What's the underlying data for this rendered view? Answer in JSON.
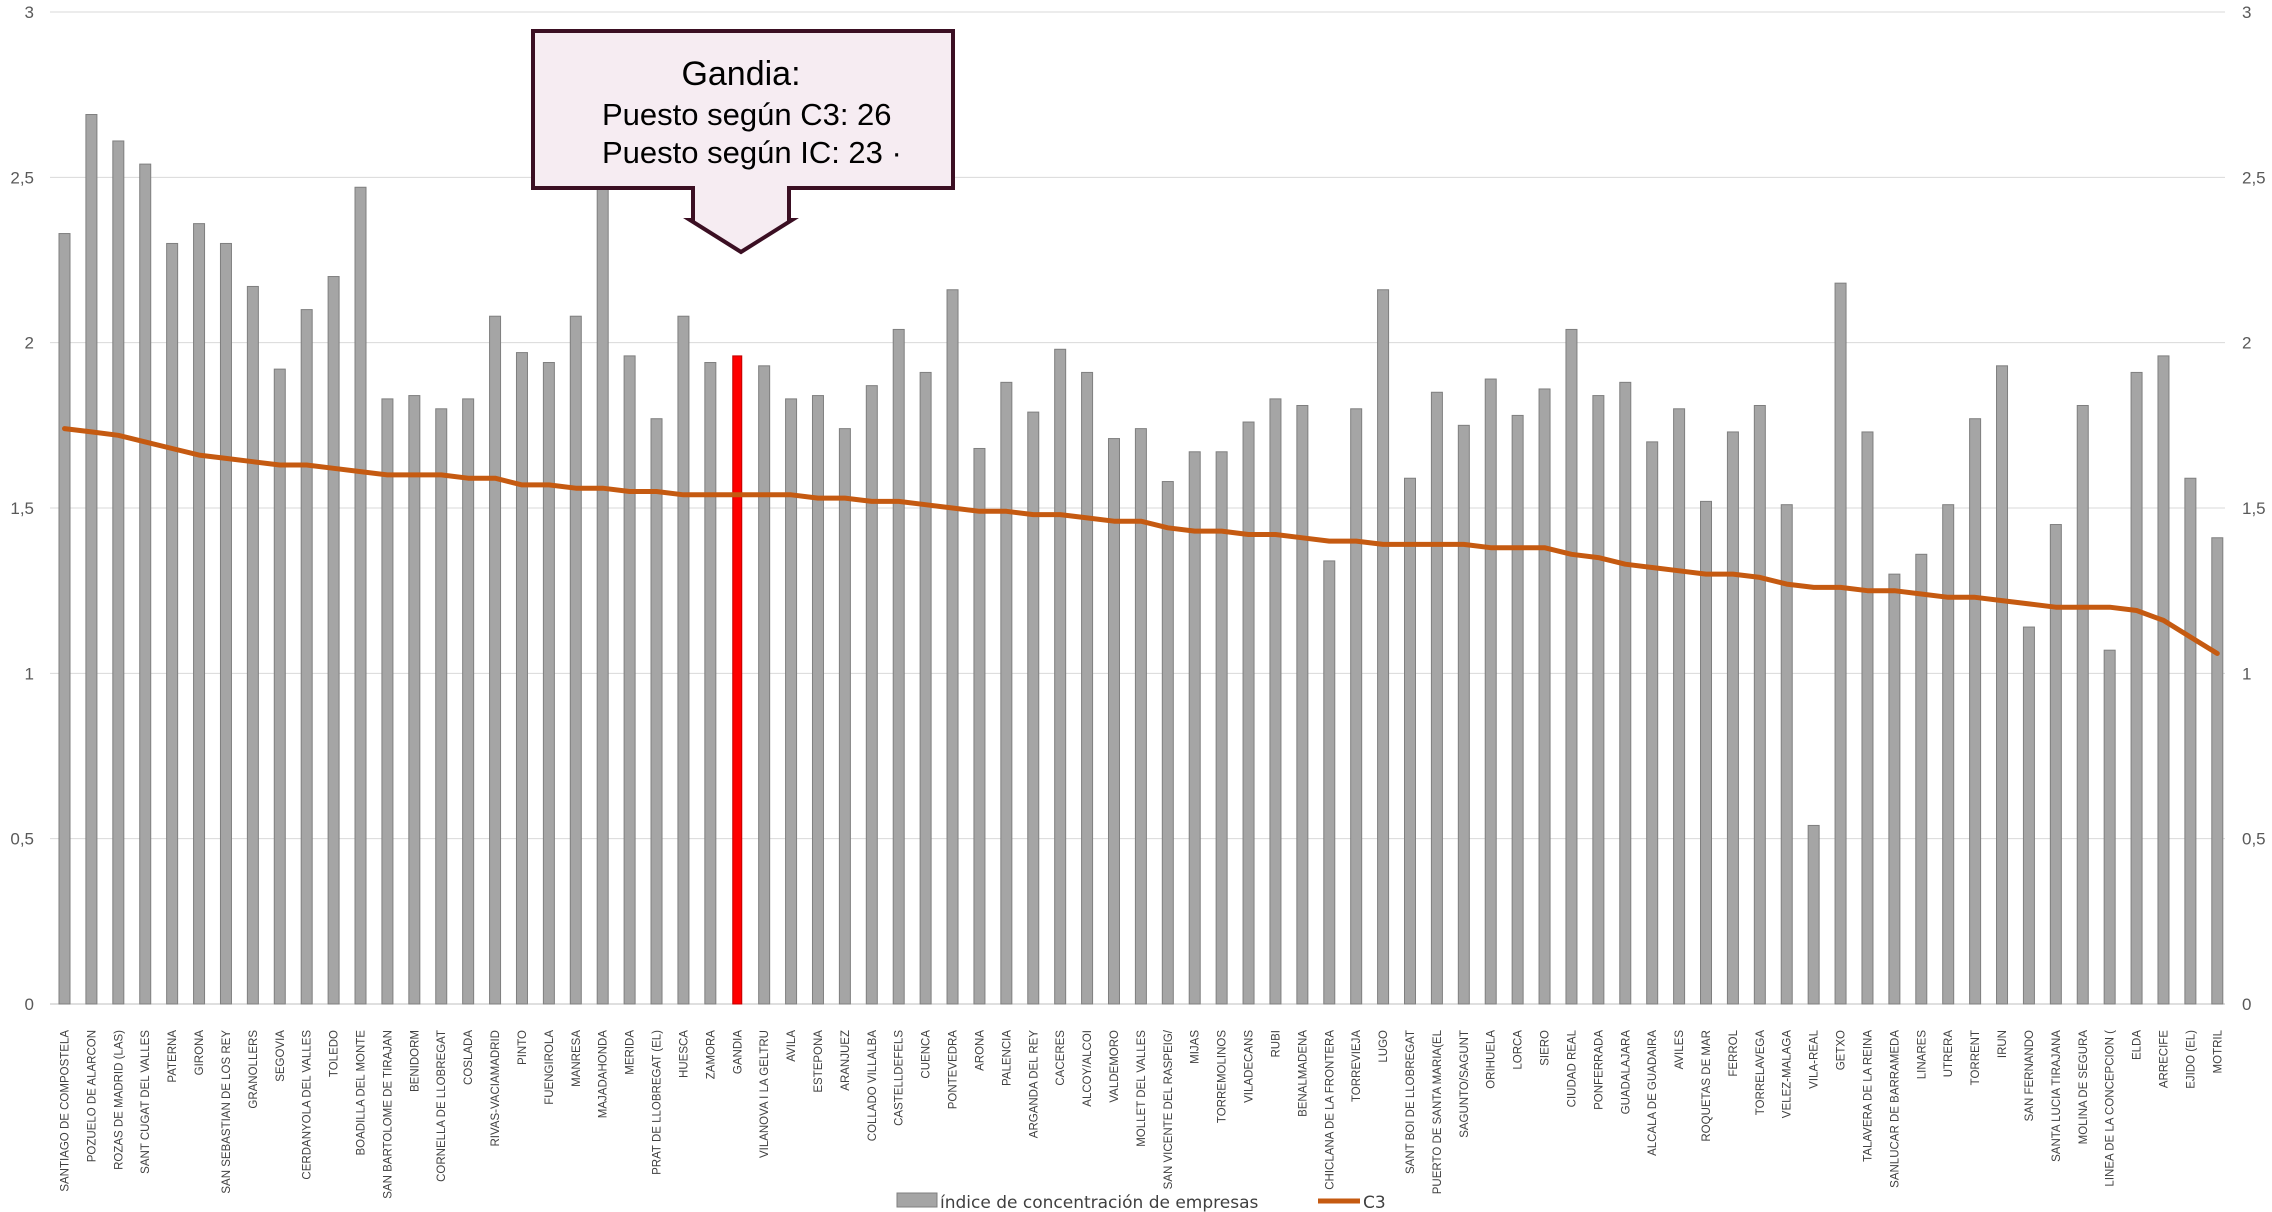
{
  "chart_data": {
    "type": "bar+line",
    "categories": [
      "SANTIAGO DE COMPOSTELA",
      "POZUELO DE ALARCON",
      "ROZAS DE MADRID (LAS)",
      "SANT CUGAT DEL VALLES",
      "PATERNA",
      "GIRONA",
      "SAN SEBASTIAN DE LOS REY",
      "GRANOLLERS",
      "SEGOVIA",
      "CERDANYOLA DEL VALLES",
      "TOLEDO",
      "BOADILLA DEL MONTE",
      "SAN BARTOLOME DE TIRAJAN",
      "BENIDORM",
      "CORNELLA DE LLOBREGAT",
      "COSLADA",
      "RIVAS-VACIAMADRID",
      "PINTO",
      "FUENGIROLA",
      "MANRESA",
      "MAJADAHONDA",
      "MERIDA",
      "PRAT DE LLOBREGAT (EL)",
      "HUESCA",
      "ZAMORA",
      "GANDIA",
      "VILANOVA I LA GELTRU",
      "AVILA",
      "ESTEPONA",
      "ARANJUEZ",
      "COLLADO VILLALBA",
      "CASTELLDEFELS",
      "CUENCA",
      "PONTEVEDRA",
      "ARONA",
      "PALENCIA",
      "ARGANDA DEL REY",
      "CACERES",
      "ALCOY/ALCOI",
      "VALDEMORO",
      "MOLLET DEL VALLES",
      "SAN VICENTE DEL RASPEIG/",
      "MIJAS",
      "TORREMOLINOS",
      "VILADECANS",
      "RUBI",
      "BENALMADENA",
      "CHICLANA DE LA FRONTERA",
      "TORREVIEJA",
      "LUGO",
      "SANT BOI DE LLOBREGAT",
      "PUERTO DE SANTA MARIA(EL",
      "SAGUNTO/SAGUNT",
      "ORIHUELA",
      "LORCA",
      "SIERO",
      "CIUDAD REAL",
      "PONFERRADA",
      "GUADALAJARA",
      "ALCALA DE GUADAIRA",
      "AVILES",
      "ROQUETAS DE MAR",
      "FERROL",
      "TORRELAVEGA",
      "VELEZ-MALAGA",
      "VILA-REAL",
      "GETXO",
      "TALAVERA DE LA REINA",
      "SANLUCAR DE BARRAMEDA",
      "LINARES",
      "UTRERA",
      "TORRENT",
      "IRUN",
      "SAN FERNANDO",
      "SANTA LUCIA TIRAJANA",
      "MOLINA DE SEGURA",
      "LINEA DE LA CONCEPCION (",
      "ELDA",
      "ARRECIFE",
      "EJIDO (EL)",
      "MOTRIL"
    ],
    "series": [
      {
        "name": "índice de concentración de empresas",
        "kind": "bar",
        "color": "#a5a5a5",
        "values": [
          2.33,
          2.69,
          2.61,
          2.54,
          2.3,
          2.36,
          2.3,
          2.17,
          1.92,
          2.1,
          2.2,
          2.47,
          1.83,
          1.84,
          1.8,
          1.83,
          2.08,
          1.97,
          1.94,
          2.08,
          2.5,
          1.96,
          1.77,
          2.08,
          1.94,
          1.96,
          1.93,
          1.83,
          1.84,
          1.74,
          1.87,
          2.04,
          1.91,
          2.16,
          1.68,
          1.88,
          1.79,
          1.98,
          1.91,
          1.71,
          1.74,
          1.58,
          1.67,
          1.67,
          1.76,
          1.83,
          1.81,
          1.34,
          1.8,
          2.16,
          1.59,
          1.85,
          1.75,
          1.89,
          1.78,
          1.86,
          2.04,
          1.84,
          1.88,
          1.7,
          1.8,
          1.52,
          1.73,
          1.81,
          1.51,
          0.54,
          2.18,
          1.73,
          1.3,
          1.36,
          1.51,
          1.77,
          1.93,
          1.14,
          1.45,
          1.81,
          1.07,
          1.91,
          1.96,
          1.59,
          1.41
        ]
      },
      {
        "name": "C3",
        "kind": "line",
        "color": "#c55a11",
        "values": [
          1.74,
          1.73,
          1.72,
          1.7,
          1.68,
          1.66,
          1.65,
          1.64,
          1.63,
          1.63,
          1.62,
          1.61,
          1.6,
          1.6,
          1.6,
          1.59,
          1.59,
          1.57,
          1.57,
          1.56,
          1.56,
          1.55,
          1.55,
          1.54,
          1.54,
          1.54,
          1.54,
          1.54,
          1.53,
          1.53,
          1.52,
          1.52,
          1.51,
          1.5,
          1.49,
          1.49,
          1.48,
          1.48,
          1.47,
          1.46,
          1.46,
          1.44,
          1.43,
          1.43,
          1.42,
          1.42,
          1.41,
          1.4,
          1.4,
          1.39,
          1.39,
          1.39,
          1.39,
          1.38,
          1.38,
          1.38,
          1.36,
          1.35,
          1.33,
          1.32,
          1.31,
          1.3,
          1.3,
          1.29,
          1.27,
          1.26,
          1.26,
          1.25,
          1.25,
          1.24,
          1.23,
          1.23,
          1.22,
          1.21,
          1.2,
          1.2,
          1.2,
          1.19,
          1.16,
          1.11,
          1.06
        ]
      }
    ],
    "highlight": {
      "category": "GANDIA",
      "color": "#ff0000"
    },
    "ylim": [
      0,
      3
    ],
    "y_ticks": [
      "0",
      "0,5",
      "1",
      "1,5",
      "2",
      "2,5",
      "3"
    ],
    "grid": true,
    "legend_position": "bottom"
  },
  "callout": {
    "title": "Gandia:",
    "line1": "Puesto según C3:   26",
    "line2": "Puesto según IC:   23 ·",
    "border_color": "#3b0f23",
    "fill_color": "#f6ecf2"
  },
  "legend": {
    "bar_label": "índice de concentración de empresas",
    "line_label": "C3"
  }
}
